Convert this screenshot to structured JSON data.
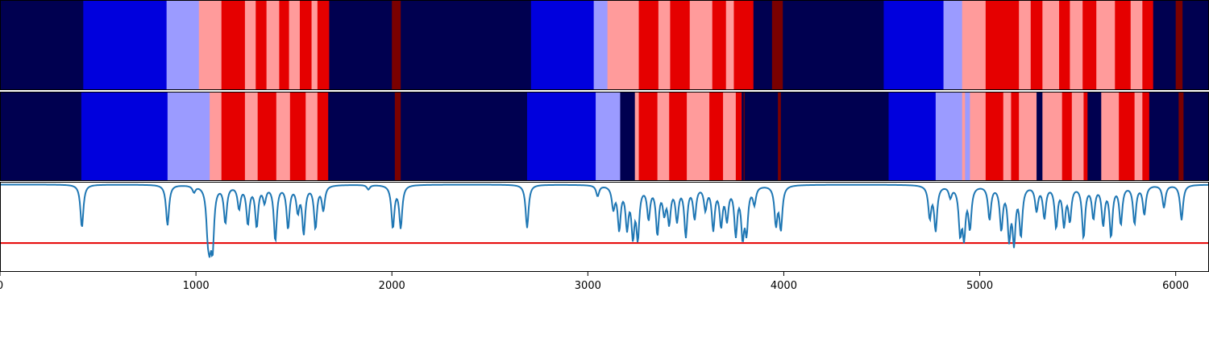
{
  "chart_data": {
    "type": "heatmap",
    "title": "",
    "xlabel": "",
    "ylabel": "",
    "xlim": [
      0,
      6170
    ],
    "x_ticks": [
      "0",
      "1000",
      "2000",
      "3000",
      "4000",
      "5000",
      "6000"
    ],
    "x_tick_values": [
      0,
      1000,
      2000,
      3000,
      4000,
      5000,
      6000
    ],
    "colors": {
      "0": "#000050",
      "1": "#0000dd",
      "2": "#9b9bff",
      "3": "#ff9b9b",
      "4": "#e50000",
      "5": "#7a0000",
      "line": "#1f77b4",
      "threshold": "#e50000"
    },
    "segment_rows": [
      {
        "name": "",
        "segments": [
          [
            0,
            425,
            0
          ],
          [
            425,
            850,
            1
          ],
          [
            850,
            1015,
            2
          ],
          [
            1015,
            1130,
            3
          ],
          [
            1130,
            1250,
            4
          ],
          [
            1250,
            1305,
            3
          ],
          [
            1305,
            1360,
            4
          ],
          [
            1360,
            1425,
            3
          ],
          [
            1425,
            1475,
            4
          ],
          [
            1475,
            1530,
            3
          ],
          [
            1530,
            1590,
            4
          ],
          [
            1590,
            1620,
            3
          ],
          [
            1620,
            1680,
            4
          ],
          [
            1680,
            2000,
            0
          ],
          [
            2000,
            2045,
            5
          ],
          [
            2045,
            2710,
            0
          ],
          [
            2710,
            3030,
            1
          ],
          [
            3030,
            3100,
            2
          ],
          [
            3100,
            3260,
            3
          ],
          [
            3260,
            3360,
            4
          ],
          [
            3360,
            3420,
            3
          ],
          [
            3420,
            3520,
            4
          ],
          [
            3520,
            3635,
            3
          ],
          [
            3635,
            3705,
            4
          ],
          [
            3705,
            3745,
            3
          ],
          [
            3745,
            3845,
            4
          ],
          [
            3845,
            3940,
            0
          ],
          [
            3940,
            3995,
            5
          ],
          [
            3995,
            4510,
            0
          ],
          [
            4510,
            4815,
            1
          ],
          [
            4815,
            4910,
            2
          ],
          [
            4910,
            5030,
            3
          ],
          [
            5030,
            5200,
            4
          ],
          [
            5200,
            5260,
            3
          ],
          [
            5260,
            5320,
            4
          ],
          [
            5320,
            5405,
            3
          ],
          [
            5405,
            5460,
            4
          ],
          [
            5460,
            5525,
            3
          ],
          [
            5525,
            5595,
            4
          ],
          [
            5595,
            5690,
            3
          ],
          [
            5690,
            5770,
            4
          ],
          [
            5770,
            5830,
            3
          ],
          [
            5830,
            5885,
            4
          ],
          [
            5885,
            6000,
            0
          ],
          [
            6000,
            6035,
            5
          ],
          [
            6035,
            6170,
            0
          ]
        ]
      },
      {
        "name": "",
        "segments": [
          [
            0,
            415,
            0
          ],
          [
            415,
            855,
            1
          ],
          [
            855,
            1070,
            2
          ],
          [
            1070,
            1130,
            3
          ],
          [
            1130,
            1250,
            4
          ],
          [
            1250,
            1315,
            3
          ],
          [
            1315,
            1410,
            4
          ],
          [
            1410,
            1480,
            3
          ],
          [
            1480,
            1560,
            4
          ],
          [
            1560,
            1620,
            3
          ],
          [
            1620,
            1675,
            4
          ],
          [
            1675,
            2015,
            0
          ],
          [
            2015,
            2045,
            5
          ],
          [
            2045,
            2690,
            0
          ],
          [
            2690,
            3040,
            1
          ],
          [
            3040,
            3165,
            2
          ],
          [
            3165,
            3240,
            0
          ],
          [
            3240,
            3260,
            3
          ],
          [
            3260,
            3355,
            4
          ],
          [
            3355,
            3415,
            3
          ],
          [
            3415,
            3505,
            4
          ],
          [
            3505,
            3620,
            3
          ],
          [
            3620,
            3690,
            4
          ],
          [
            3690,
            3755,
            3
          ],
          [
            3755,
            3785,
            4
          ],
          [
            3785,
            3795,
            0
          ],
          [
            3795,
            3800,
            5
          ],
          [
            3800,
            3970,
            0
          ],
          [
            3970,
            3985,
            5
          ],
          [
            3985,
            4535,
            0
          ],
          [
            4535,
            4775,
            1
          ],
          [
            4775,
            4910,
            2
          ],
          [
            4910,
            4925,
            3
          ],
          [
            4925,
            4950,
            2
          ],
          [
            4950,
            5030,
            3
          ],
          [
            5030,
            5120,
            4
          ],
          [
            5120,
            5160,
            3
          ],
          [
            5160,
            5200,
            4
          ],
          [
            5200,
            5290,
            3
          ],
          [
            5290,
            5320,
            0
          ],
          [
            5320,
            5420,
            3
          ],
          [
            5420,
            5470,
            4
          ],
          [
            5470,
            5530,
            3
          ],
          [
            5530,
            5550,
            4
          ],
          [
            5550,
            5620,
            0
          ],
          [
            5620,
            5710,
            3
          ],
          [
            5710,
            5790,
            4
          ],
          [
            5790,
            5830,
            3
          ],
          [
            5830,
            5865,
            4
          ],
          [
            5865,
            6015,
            0
          ],
          [
            6015,
            6040,
            5
          ],
          [
            6040,
            6170,
            0
          ]
        ]
      }
    ],
    "line_panel": {
      "ylim": [
        0,
        1
      ],
      "threshold": 0.32,
      "baseline": 0.97,
      "dips": [
        [
          418,
          0.49
        ],
        [
          855,
          0.52
        ],
        [
          990,
          0.9
        ],
        [
          1060,
          0.58
        ],
        [
          1070,
          0.51
        ],
        [
          1085,
          0.35
        ],
        [
          1150,
          0.56
        ],
        [
          1220,
          0.72
        ],
        [
          1265,
          0.55
        ],
        [
          1310,
          0.52
        ],
        [
          1350,
          0.8
        ],
        [
          1405,
          0.36
        ],
        [
          1470,
          0.5
        ],
        [
          1520,
          0.7
        ],
        [
          1550,
          0.45
        ],
        [
          1610,
          0.5
        ],
        [
          1650,
          0.7
        ],
        [
          1880,
          0.92
        ],
        [
          2005,
          0.5
        ],
        [
          2045,
          0.5
        ],
        [
          2690,
          0.49
        ],
        [
          3050,
          0.85
        ],
        [
          3130,
          0.73
        ],
        [
          3160,
          0.5
        ],
        [
          3200,
          0.53
        ],
        [
          3230,
          0.45
        ],
        [
          3255,
          0.42
        ],
        [
          3310,
          0.62
        ],
        [
          3355,
          0.45
        ],
        [
          3390,
          0.7
        ],
        [
          3415,
          0.58
        ],
        [
          3455,
          0.6
        ],
        [
          3500,
          0.42
        ],
        [
          3545,
          0.62
        ],
        [
          3600,
          0.72
        ],
        [
          3640,
          0.5
        ],
        [
          3680,
          0.55
        ],
        [
          3710,
          0.62
        ],
        [
          3755,
          0.45
        ],
        [
          3790,
          0.45
        ],
        [
          3810,
          0.5
        ],
        [
          3850,
          0.78
        ],
        [
          3960,
          0.55
        ],
        [
          3985,
          0.5
        ],
        [
          4745,
          0.62
        ],
        [
          4775,
          0.48
        ],
        [
          4850,
          0.85
        ],
        [
          4900,
          0.48
        ],
        [
          4920,
          0.45
        ],
        [
          4950,
          0.52
        ],
        [
          5050,
          0.6
        ],
        [
          5110,
          0.5
        ],
        [
          5150,
          0.42
        ],
        [
          5175,
          0.38
        ],
        [
          5210,
          0.44
        ],
        [
          5290,
          0.7
        ],
        [
          5330,
          0.62
        ],
        [
          5390,
          0.52
        ],
        [
          5430,
          0.55
        ],
        [
          5460,
          0.6
        ],
        [
          5530,
          0.4
        ],
        [
          5580,
          0.62
        ],
        [
          5630,
          0.55
        ],
        [
          5670,
          0.42
        ],
        [
          5720,
          0.55
        ],
        [
          5790,
          0.55
        ],
        [
          5840,
          0.65
        ],
        [
          5940,
          0.72
        ],
        [
          6030,
          0.58
        ]
      ]
    }
  }
}
